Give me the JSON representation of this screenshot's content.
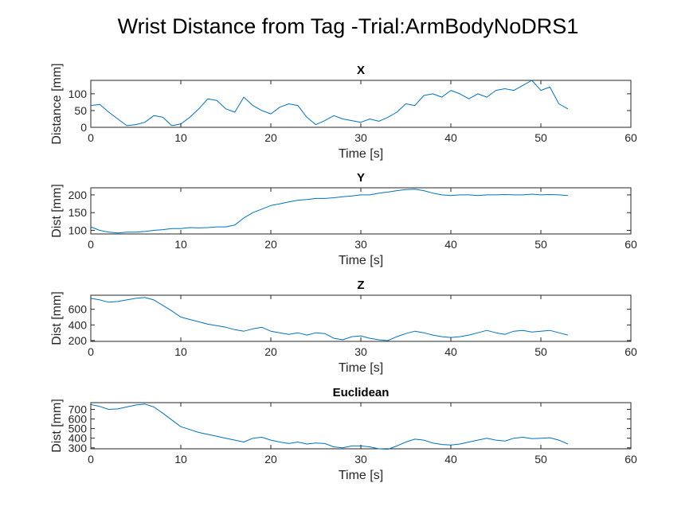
{
  "figure": {
    "title": "Wrist Distance from Tag -Trial:ArmBodyNoDRS1",
    "line_color": "#0072BD"
  },
  "chart_data": [
    {
      "type": "line",
      "title": "X",
      "xlabel": "Time [s]",
      "ylabel": "Distance [mm]",
      "xlim": [
        0,
        60
      ],
      "ylim": [
        0,
        140
      ],
      "xticks": [
        0,
        10,
        20,
        30,
        40,
        50,
        60
      ],
      "yticks": [
        0,
        50,
        100
      ],
      "grid": false,
      "series": [
        {
          "x": [
            0,
            1,
            2,
            3,
            4,
            5,
            6,
            7,
            8,
            9,
            10,
            11,
            12,
            13,
            14,
            15,
            16,
            17,
            18,
            19,
            20,
            21,
            22,
            23,
            24,
            25,
            26,
            27,
            28,
            29,
            30,
            31,
            32,
            33,
            34,
            35,
            36,
            37,
            38,
            39,
            40,
            41,
            42,
            43,
            44,
            45,
            46,
            47,
            48,
            49,
            50,
            51,
            52,
            53
          ],
          "y": [
            65,
            68,
            45,
            25,
            5,
            8,
            15,
            35,
            30,
            5,
            10,
            30,
            55,
            85,
            80,
            55,
            45,
            90,
            65,
            50,
            40,
            60,
            70,
            65,
            30,
            8,
            20,
            35,
            25,
            20,
            15,
            25,
            18,
            30,
            45,
            70,
            65,
            95,
            100,
            90,
            110,
            100,
            85,
            100,
            90,
            110,
            115,
            110,
            125,
            140,
            110,
            120,
            70,
            55
          ]
        }
      ]
    },
    {
      "type": "line",
      "title": "Y",
      "xlabel": "Time [s]",
      "ylabel": "Dist [mm]",
      "xlim": [
        0,
        60
      ],
      "ylim": [
        90,
        220
      ],
      "xticks": [
        0,
        10,
        20,
        30,
        40,
        50,
        60
      ],
      "yticks": [
        100,
        150,
        200
      ],
      "grid": false,
      "series": [
        {
          "x": [
            0,
            1,
            2,
            3,
            4,
            5,
            6,
            7,
            8,
            9,
            10,
            11,
            12,
            13,
            14,
            15,
            16,
            17,
            18,
            19,
            20,
            21,
            22,
            23,
            24,
            25,
            26,
            27,
            28,
            29,
            30,
            31,
            32,
            33,
            34,
            35,
            36,
            37,
            38,
            39,
            40,
            41,
            42,
            43,
            44,
            45,
            46,
            47,
            48,
            49,
            50,
            51,
            52,
            53
          ],
          "y": [
            110,
            100,
            95,
            93,
            95,
            95,
            97,
            100,
            102,
            105,
            105,
            108,
            107,
            108,
            110,
            110,
            115,
            135,
            150,
            160,
            170,
            175,
            180,
            185,
            187,
            190,
            190,
            192,
            195,
            197,
            200,
            200,
            205,
            208,
            212,
            215,
            216,
            212,
            205,
            200,
            198,
            200,
            200,
            198,
            200,
            200,
            201,
            200,
            200,
            202,
            200,
            201,
            200,
            198
          ]
        }
      ]
    },
    {
      "type": "line",
      "title": "Z",
      "xlabel": "Time [s]",
      "ylabel": "Dist [mm]",
      "xlim": [
        0,
        60
      ],
      "ylim": [
        190,
        780
      ],
      "xticks": [
        0,
        10,
        20,
        30,
        40,
        50,
        60
      ],
      "yticks": [
        200,
        400,
        600
      ],
      "grid": false,
      "series": [
        {
          "x": [
            0,
            1,
            2,
            3,
            4,
            5,
            6,
            7,
            8,
            9,
            10,
            11,
            12,
            13,
            14,
            15,
            16,
            17,
            18,
            19,
            20,
            21,
            22,
            23,
            24,
            25,
            26,
            27,
            28,
            29,
            30,
            31,
            32,
            33,
            34,
            35,
            36,
            37,
            38,
            39,
            40,
            41,
            42,
            43,
            44,
            45,
            46,
            47,
            48,
            49,
            50,
            51,
            52,
            53
          ],
          "y": [
            740,
            720,
            690,
            700,
            720,
            740,
            750,
            720,
            650,
            580,
            500,
            470,
            440,
            410,
            390,
            370,
            340,
            320,
            350,
            370,
            320,
            300,
            280,
            300,
            270,
            300,
            290,
            230,
            210,
            250,
            260,
            230,
            210,
            200,
            250,
            290,
            320,
            300,
            270,
            250,
            240,
            250,
            270,
            300,
            330,
            300,
            280,
            320,
            330,
            310,
            320,
            330,
            300,
            270
          ]
        }
      ]
    },
    {
      "type": "line",
      "title": "Euclidean",
      "xlabel": "Time [s]",
      "ylabel": "Dist [mm]",
      "xlim": [
        0,
        60
      ],
      "ylim": [
        290,
        770
      ],
      "xticks": [
        0,
        10,
        20,
        30,
        40,
        50,
        60
      ],
      "yticks": [
        300,
        400,
        500,
        600,
        700
      ],
      "grid": false,
      "series": [
        {
          "x": [
            0,
            1,
            2,
            3,
            4,
            5,
            6,
            7,
            8,
            9,
            10,
            11,
            12,
            13,
            14,
            15,
            16,
            17,
            18,
            19,
            20,
            21,
            22,
            23,
            24,
            25,
            26,
            27,
            28,
            29,
            30,
            31,
            32,
            33,
            34,
            35,
            36,
            37,
            38,
            39,
            40,
            41,
            42,
            43,
            44,
            45,
            46,
            47,
            48,
            49,
            50,
            51,
            52,
            53
          ],
          "y": [
            750,
            730,
            700,
            705,
            725,
            745,
            755,
            725,
            660,
            590,
            520,
            490,
            460,
            440,
            420,
            400,
            380,
            360,
            400,
            410,
            380,
            360,
            345,
            360,
            340,
            350,
            345,
            310,
            300,
            320,
            320,
            310,
            290,
            285,
            320,
            360,
            390,
            380,
            350,
            335,
            330,
            340,
            360,
            380,
            400,
            380,
            370,
            400,
            410,
            395,
            400,
            405,
            380,
            340
          ]
        }
      ]
    }
  ]
}
